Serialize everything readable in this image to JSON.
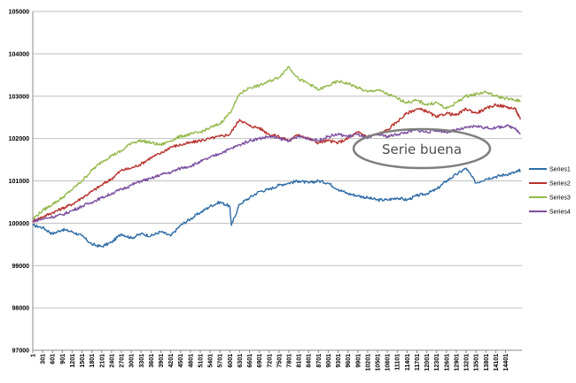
{
  "chart_data": {
    "type": "line",
    "title": "",
    "xlabel": "",
    "ylabel": "",
    "ylim": [
      97000,
      105000
    ],
    "yticks": [
      97000,
      98000,
      99000,
      100000,
      101000,
      102000,
      103000,
      104000,
      105000
    ],
    "ytick_labels": [
      "97000",
      "98000",
      "99000",
      "100000",
      "101000",
      "102000",
      "103000",
      "104000",
      "105000"
    ],
    "xlim": [
      1,
      14900
    ],
    "x_tick_labels": [
      "1",
      "301",
      "601",
      "901",
      "1201",
      "1501",
      "1801",
      "2101",
      "2401",
      "2701",
      "3001",
      "3301",
      "3601",
      "3901",
      "4201",
      "4501",
      "4801",
      "5101",
      "5401",
      "5701",
      "6001",
      "6301",
      "6601",
      "6901",
      "7201",
      "7501",
      "7801",
      "8101",
      "8401",
      "8701",
      "9001",
      "9301",
      "9601",
      "9901",
      "10201",
      "10501",
      "10801",
      "11101",
      "11401",
      "11701",
      "12001",
      "12301",
      "12601",
      "12901",
      "13201",
      "13501",
      "13801",
      "14101",
      "14401"
    ],
    "x_tick_values": [
      1,
      301,
      601,
      901,
      1201,
      1501,
      1801,
      2101,
      2401,
      2701,
      3001,
      3301,
      3601,
      3901,
      4201,
      4501,
      4801,
      5101,
      5401,
      5701,
      6001,
      6301,
      6601,
      6901,
      7201,
      7501,
      7801,
      8101,
      8401,
      8701,
      9001,
      9301,
      9601,
      9901,
      10201,
      10501,
      10801,
      11101,
      11401,
      11701,
      12001,
      12301,
      12601,
      12901,
      13201,
      13501,
      13801,
      14101,
      14401
    ],
    "grid": "horizontal",
    "legend_position": "right",
    "annotation": "Serie buena",
    "series": [
      {
        "name": "Series1",
        "color": "#2e6ca6",
        "x": [
          1,
          300,
          600,
          900,
          1200,
          1500,
          1800,
          2100,
          2400,
          2700,
          3000,
          3300,
          3600,
          3900,
          4200,
          4500,
          4800,
          5100,
          5400,
          5700,
          6000,
          6050,
          6300,
          6600,
          6900,
          7200,
          7500,
          7800,
          8100,
          8400,
          8700,
          9000,
          9300,
          9600,
          9900,
          10200,
          10500,
          10800,
          11100,
          11400,
          11700,
          12000,
          12300,
          12600,
          12900,
          13200,
          13500,
          13800,
          14100,
          14400,
          14700,
          14850
        ],
        "y": [
          99950,
          99900,
          99750,
          99850,
          99800,
          99700,
          99500,
          99450,
          99550,
          99750,
          99650,
          99750,
          99700,
          99800,
          99700,
          99950,
          100100,
          100250,
          100400,
          100500,
          100400,
          99950,
          100450,
          100600,
          100750,
          100800,
          100900,
          100950,
          101000,
          100950,
          101000,
          100950,
          100800,
          100700,
          100650,
          100600,
          100550,
          100550,
          100600,
          100550,
          100650,
          100700,
          100800,
          101000,
          101150,
          101300,
          100950,
          101050,
          101100,
          101150,
          101200,
          101250
        ]
      },
      {
        "name": "Series2",
        "color": "#b8312b",
        "x": [
          1,
          300,
          600,
          900,
          1200,
          1500,
          1800,
          2100,
          2400,
          2700,
          3000,
          3300,
          3600,
          3900,
          4200,
          4500,
          4800,
          5100,
          5400,
          5700,
          6000,
          6300,
          6600,
          6900,
          7200,
          7500,
          7800,
          8100,
          8400,
          8700,
          9000,
          9300,
          9600,
          9900,
          10200,
          10500,
          10800,
          11100,
          11400,
          11700,
          12000,
          12300,
          12600,
          12900,
          13200,
          13500,
          13800,
          14100,
          14400,
          14700,
          14850
        ],
        "y": [
          100050,
          100150,
          100250,
          100350,
          100450,
          100600,
          100750,
          100900,
          101050,
          101250,
          101300,
          101400,
          101550,
          101650,
          101800,
          101850,
          101900,
          101950,
          102000,
          102050,
          102100,
          102450,
          102300,
          102250,
          102100,
          102050,
          101950,
          102100,
          102000,
          101900,
          101950,
          101900,
          102000,
          102150,
          102050,
          102100,
          102200,
          102400,
          102600,
          102700,
          102650,
          102500,
          102600,
          102550,
          102700,
          102600,
          102700,
          102800,
          102750,
          102700,
          102450
        ]
      },
      {
        "name": "Series3",
        "color": "#93b94a",
        "x": [
          1,
          300,
          600,
          900,
          1200,
          1500,
          1800,
          2100,
          2400,
          2700,
          3000,
          3300,
          3600,
          3900,
          4200,
          4500,
          4800,
          5100,
          5400,
          5700,
          6000,
          6300,
          6600,
          6900,
          7200,
          7500,
          7800,
          8100,
          8400,
          8700,
          9000,
          9300,
          9600,
          9900,
          10200,
          10500,
          10800,
          11100,
          11400,
          11700,
          12000,
          12300,
          12600,
          12900,
          13200,
          13500,
          13800,
          14100,
          14400,
          14700,
          14850
        ],
        "y": [
          100100,
          100300,
          100450,
          100600,
          100800,
          101000,
          101250,
          101450,
          101600,
          101700,
          101900,
          101950,
          101900,
          101850,
          101950,
          102050,
          102100,
          102150,
          102250,
          102350,
          102600,
          103050,
          103200,
          103250,
          103350,
          103450,
          103700,
          103400,
          103300,
          103150,
          103250,
          103350,
          103300,
          103200,
          103100,
          103150,
          103050,
          102950,
          102850,
          102900,
          102800,
          102850,
          102700,
          102850,
          103000,
          103050,
          103100,
          103000,
          102950,
          102900,
          102900
        ]
      },
      {
        "name": "Series4",
        "color": "#7b4ea0",
        "x": [
          1,
          300,
          600,
          900,
          1200,
          1500,
          1800,
          2100,
          2400,
          2700,
          3000,
          3300,
          3600,
          3900,
          4200,
          4500,
          4800,
          5100,
          5400,
          5700,
          6000,
          6300,
          6600,
          6900,
          7200,
          7500,
          7800,
          8100,
          8400,
          8700,
          9000,
          9300,
          9600,
          9900,
          10200,
          10500,
          10800,
          11100,
          11400,
          11700,
          12000,
          12300,
          12600,
          12900,
          13200,
          13500,
          13800,
          14100,
          14400,
          14700,
          14850
        ],
        "y": [
          100050,
          100100,
          100150,
          100200,
          100300,
          100400,
          100500,
          100600,
          100700,
          100800,
          100900,
          101000,
          101050,
          101150,
          101200,
          101300,
          101350,
          101450,
          101550,
          101650,
          101750,
          101850,
          101950,
          102000,
          102050,
          102000,
          101950,
          102050,
          102000,
          101950,
          102050,
          102100,
          102050,
          102100,
          102000,
          102100,
          102050,
          102100,
          102150,
          102200,
          102150,
          102200,
          102150,
          102200,
          102250,
          102300,
          102250,
          102250,
          102300,
          102250,
          102100
        ]
      }
    ]
  }
}
